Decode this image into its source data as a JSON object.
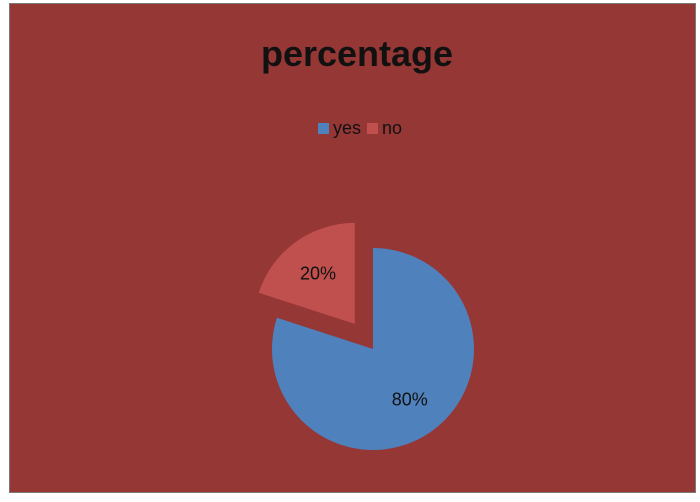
{
  "chart_data": {
    "type": "pie",
    "title": "percentage",
    "categories": [
      "yes",
      "no"
    ],
    "values": [
      80,
      20
    ],
    "data_labels": [
      "80%",
      "20%"
    ],
    "colors": [
      "#4f81bd",
      "#c0504d"
    ],
    "background_color": "#953735",
    "exploded": [
      "no"
    ],
    "legend_position": "top"
  }
}
